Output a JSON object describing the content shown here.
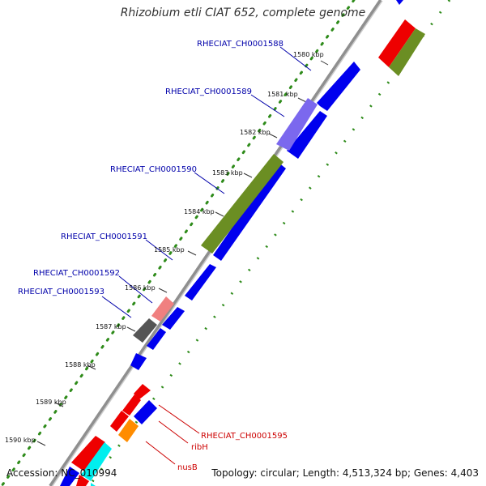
{
  "title": "Rhizobium etli CIAT 652, complete genome",
  "accession": "Accession: NC_010994",
  "topology": "Topology: circular; Length: 4,513,324 bp; Genes: 4,403",
  "ticks": [
    "1580 kbp",
    "1581 kbp",
    "1582 kbp",
    "1583 kbp",
    "1584 kbp",
    "1585 kbp",
    "1586 kbp",
    "1587 kbp",
    "1588 kbp",
    "1589 kbp",
    "1590 kbp"
  ],
  "gene_labels": [
    {
      "text": "RHECIAT_CH0001588",
      "color": "#0000aa"
    },
    {
      "text": "RHECIAT_CH0001589",
      "color": "#0000aa"
    },
    {
      "text": "RHECIAT_CH0001590",
      "color": "#0000aa"
    },
    {
      "text": "RHECIAT_CH0001591",
      "color": "#0000aa"
    },
    {
      "text": "RHECIAT_CH0001592",
      "color": "#0000aa"
    },
    {
      "text": "RHECIAT_CH0001593",
      "color": "#0000aa"
    },
    {
      "text": "RHECIAT_CH0001595",
      "color": "#cc0000"
    },
    {
      "text": "ribH",
      "color": "#cc0000"
    },
    {
      "text": "nusB",
      "color": "#cc0000"
    }
  ],
  "colors": {
    "backbone": "#9a9a9a",
    "gc_dots": "#2e8b1a",
    "blue_feature": "#0000ee",
    "olive_feature": "#6b8e23",
    "purple_feature": "#7b68ee",
    "red_feature": "#ee0000",
    "pink_feature": "#f08080",
    "gray_feature": "#555555",
    "orange_feature": "#ff8c00",
    "cyan_feature": "#00eeee"
  }
}
